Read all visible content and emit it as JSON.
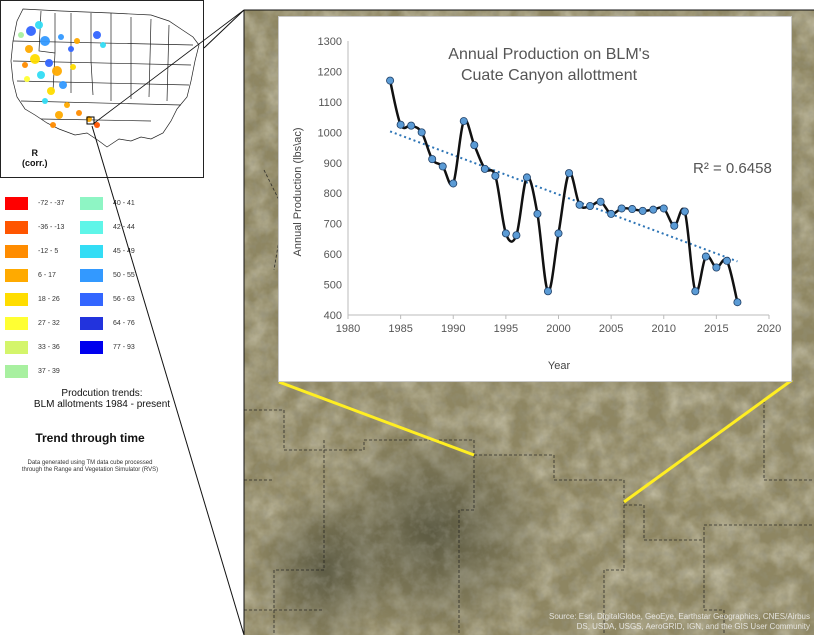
{
  "map": {
    "inset": {
      "field_label": "R",
      "field_sublabel": "(corr.)"
    },
    "legend": {
      "left_column": [
        {
          "label": "-72 - -37",
          "color": "#ff0000"
        },
        {
          "label": "-36 - -13",
          "color": "#ff5500"
        },
        {
          "label": "-12 - 5",
          "color": "#ff8c00"
        },
        {
          "label": "6 - 17",
          "color": "#ffaa00"
        },
        {
          "label": "18 - 26",
          "color": "#ffdd00"
        },
        {
          "label": "27 - 32",
          "color": "#ffff33"
        },
        {
          "label": "33 - 36",
          "color": "#d4f56b"
        },
        {
          "label": "37 - 39",
          "color": "#a8f0a0"
        }
      ],
      "right_column": [
        {
          "label": "40 - 41",
          "color": "#8ef5c4"
        },
        {
          "label": "42 - 44",
          "color": "#5ff5e8"
        },
        {
          "label": "45 - 49",
          "color": "#33ddf5"
        },
        {
          "label": "50 - 55",
          "color": "#3399ff"
        },
        {
          "label": "56 - 63",
          "color": "#3366ff"
        },
        {
          "label": "64 - 76",
          "color": "#2233dd"
        },
        {
          "label": "77 - 93",
          "color": "#0000ee"
        }
      ]
    },
    "trend_caption_line1": "Prodcution trends:",
    "trend_caption_line2": "BLM allotments 1984 - present",
    "trend_title": "Trend through time",
    "data_note_line1": "Data generated using TM data cube processed",
    "data_note_line2": "through the Range and Vegetation Simulator (RVS)",
    "attribution_line1": "Source: Esri, DigitalGlobe, GeoEye, Earthstar Geographics, CNES/Airbus",
    "attribution_line2": "DS, USDA, USGS, AeroGRID, IGN, and the GIS User Community",
    "colors": {
      "zoom_lines": "#ffee22",
      "terrain": "#8d8563"
    }
  },
  "chart_data": {
    "type": "line",
    "title_line1": "Annual Production on BLM's",
    "title_line2": "Cuate Canyon allottment",
    "xlabel": "Year",
    "ylabel": "Annual Production (lbs\\ac)",
    "xlim": [
      1980,
      2020
    ],
    "ylim": [
      400,
      1300
    ],
    "x_ticks": [
      1980,
      1985,
      1990,
      1995,
      2000,
      2005,
      2010,
      2015,
      2020
    ],
    "y_ticks": [
      400,
      500,
      600,
      700,
      800,
      900,
      1000,
      1100,
      1200,
      1300
    ],
    "x": [
      1984,
      1985,
      1986,
      1987,
      1988,
      1989,
      1990,
      1991,
      1992,
      1993,
      1994,
      1995,
      1996,
      1997,
      1998,
      1999,
      2000,
      2001,
      2002,
      2003,
      2004,
      2005,
      2006,
      2007,
      2008,
      2009,
      2010,
      2011,
      2012,
      2013,
      2014,
      2015,
      2016,
      2017
    ],
    "y": [
      1170,
      1025,
      1022,
      1000,
      912,
      888,
      832,
      1037,
      958,
      880,
      857,
      668,
      662,
      852,
      732,
      478,
      668,
      866,
      762,
      758,
      772,
      732,
      750,
      748,
      742,
      746,
      750,
      693,
      740,
      478,
      592,
      556,
      578,
      442
    ],
    "trendline": {
      "x": [
        1984,
        2017
      ],
      "y": [
        1003,
        576
      ],
      "r2_label": "R² = 0.6458"
    },
    "grid": false,
    "legend": "none",
    "colors": {
      "line": "#111111",
      "marker": "#5b9bd5",
      "trend": "#2e75b6"
    }
  }
}
